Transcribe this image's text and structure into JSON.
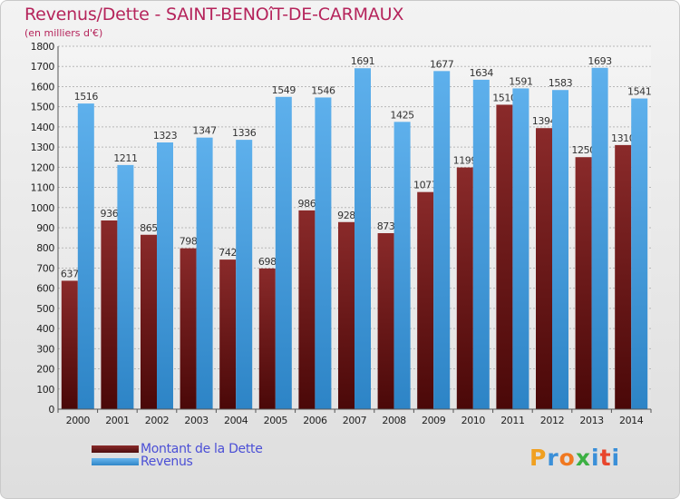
{
  "chart_data": {
    "type": "bar",
    "title": "Revenus/Dette - SAINT-BENOîT-DE-CARMAUX",
    "subtitle": "(en milliers d'€)",
    "categories": [
      "2000",
      "2001",
      "2002",
      "2003",
      "2004",
      "2005",
      "2006",
      "2007",
      "2008",
      "2009",
      "2010",
      "2011",
      "2012",
      "2013",
      "2014"
    ],
    "series": [
      {
        "name": "Montant de la Dette",
        "color": "#7a1e1e",
        "values": [
          637,
          936,
          865,
          798,
          742,
          698,
          986,
          928,
          873,
          1077,
          1199,
          1510,
          1394,
          1250,
          1310
        ],
        "labels": [
          "637",
          "936",
          "865",
          "798",
          "742",
          "698",
          "986",
          "928",
          "873",
          "1077",
          "1199",
          "1510",
          "1394",
          "1250",
          "1310"
        ]
      },
      {
        "name": "Revenus",
        "color": "#4fa6e3",
        "values": [
          1516,
          1211,
          1323,
          1347,
          1336,
          1549,
          1546,
          1691,
          1425,
          1677,
          1634,
          1591,
          1583,
          1693,
          1541
        ],
        "labels": [
          "1516",
          "1211",
          "1323",
          "1347",
          "1336",
          "1549",
          "1546",
          "1691",
          "1425",
          "1677",
          "1634",
          "1591",
          "1583",
          "1693",
          "1541"
        ]
      }
    ],
    "ylim": [
      0,
      1800
    ],
    "yticks": [
      0,
      100,
      200,
      300,
      400,
      500,
      600,
      700,
      800,
      900,
      1000,
      1100,
      1200,
      1300,
      1400,
      1500,
      1600,
      1700,
      1800
    ],
    "grid": true,
    "legend_position": "bottom-left"
  },
  "logo": {
    "letters": [
      "P",
      "r",
      "o",
      "x",
      "i",
      "t",
      "i"
    ],
    "colors": [
      "#f0a020",
      "#3a8fd8",
      "#f07820",
      "#3cb043",
      "#3a8fd8",
      "#e8452c",
      "#3a8fd8"
    ]
  }
}
